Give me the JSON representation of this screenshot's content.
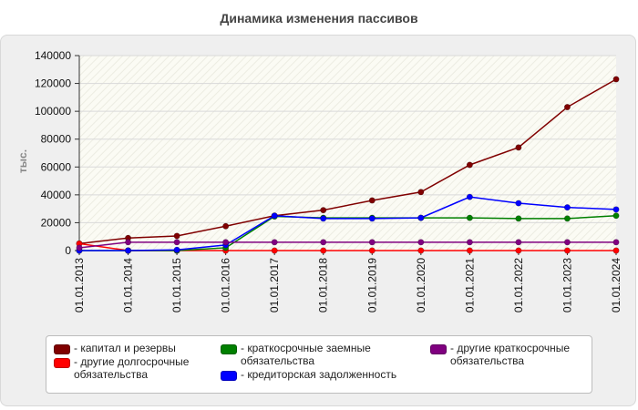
{
  "chart_data": {
    "type": "line",
    "title": "Динамика изменения пассивов",
    "ylabel": "тыс.",
    "xlabel": "",
    "categories": [
      "01.01.2013",
      "01.01.2014",
      "01.01.2015",
      "01.01.2016",
      "01.01.2017",
      "01.01.2018",
      "01.01.2019",
      "01.01.2020",
      "01.01.2021",
      "01.01.2022",
      "01.01.2023",
      "01.01.2024"
    ],
    "yticks": [
      "0",
      "20000",
      "40000",
      "60000",
      "80000",
      "100000",
      "120000",
      "140000"
    ],
    "ylim": [
      0,
      140000
    ],
    "grid": true,
    "legend_position": "bottom",
    "series": [
      {
        "name": "капитал и резервы",
        "color": "#800000",
        "values": [
          5000,
          9000,
          10500,
          17500,
          25000,
          29000,
          36000,
          42000,
          61500,
          74000,
          103000,
          123000
        ]
      },
      {
        "name": "другие долгосрочные обязательства",
        "color": "#ff0000",
        "values": [
          5000,
          0,
          0,
          0,
          0,
          0,
          0,
          0,
          0,
          0,
          0,
          0
        ]
      },
      {
        "name": "краткосрочные заемные обязательства",
        "color": "#008000",
        "values": [
          0,
          0,
          0,
          2000,
          24500,
          23500,
          23500,
          23500,
          23500,
          23000,
          23000,
          25000
        ]
      },
      {
        "name": "кредиторская задолженность",
        "color": "#0000ff",
        "values": [
          0,
          0,
          500,
          4000,
          25000,
          23000,
          23000,
          23500,
          38500,
          34000,
          31000,
          29500
        ]
      },
      {
        "name": "другие краткосрочные обязательства",
        "color": "#800080",
        "values": [
          2000,
          6000,
          6000,
          6000,
          6000,
          6000,
          6000,
          6000,
          6000,
          6000,
          6000,
          6000
        ]
      }
    ]
  },
  "legend": {
    "items": [
      {
        "label": "- капитал и резервы",
        "color": "#800000"
      },
      {
        "label": "- другие долгосрочные обязательства",
        "color": "#ff0000"
      },
      {
        "label": "- краткосрочные заемные обязательства",
        "color": "#008000"
      },
      {
        "label": "- кредиторская задолженность",
        "color": "#0000ff"
      },
      {
        "label": "- другие краткосрочные обязательства",
        "color": "#800080"
      }
    ]
  }
}
